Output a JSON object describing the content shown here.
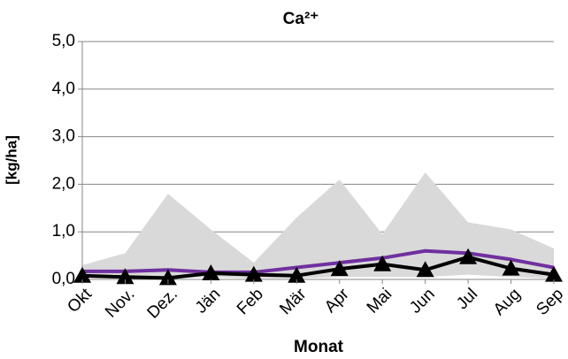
{
  "chart_data": {
    "type": "line",
    "title": "Ca²⁺",
    "x_label": "Monat",
    "y_label": "[kg/ha]",
    "categories": [
      "Okt",
      "Nov.",
      "Dez.",
      "Jän",
      "Feb",
      "Mär",
      "Apr",
      "Mai",
      "Jun",
      "Jul",
      "Aug",
      "Sep"
    ],
    "band": {
      "color": "#d9d9d9",
      "upper": [
        0.3,
        0.55,
        1.8,
        1.05,
        0.35,
        1.3,
        2.1,
        0.95,
        2.25,
        1.2,
        1.05,
        0.65
      ],
      "lower": [
        0.02,
        0.02,
        0.02,
        0.05,
        0.02,
        0.02,
        0.05,
        0.05,
        0.05,
        0.1,
        0.05,
        0.02
      ]
    },
    "series": [
      {
        "color": "#7030a0",
        "values": [
          0.17,
          0.17,
          0.2,
          0.15,
          0.15,
          0.25,
          0.35,
          0.45,
          0.6,
          0.55,
          0.42,
          0.25
        ]
      },
      {
        "color": "#000000",
        "marker": "triangle",
        "values": [
          0.08,
          0.05,
          0.03,
          0.13,
          0.1,
          0.08,
          0.22,
          0.32,
          0.2,
          0.47,
          0.23,
          0.1
        ]
      }
    ],
    "ylim": [
      0,
      5
    ],
    "yticks": [
      {
        "value": 0,
        "label": "0,0"
      },
      {
        "value": 1,
        "label": "1,0"
      },
      {
        "value": 2,
        "label": "2,0"
      },
      {
        "value": 3,
        "label": "3,0"
      },
      {
        "value": 4,
        "label": "4,0"
      },
      {
        "value": 5,
        "label": "5,0"
      }
    ],
    "grid": true
  }
}
